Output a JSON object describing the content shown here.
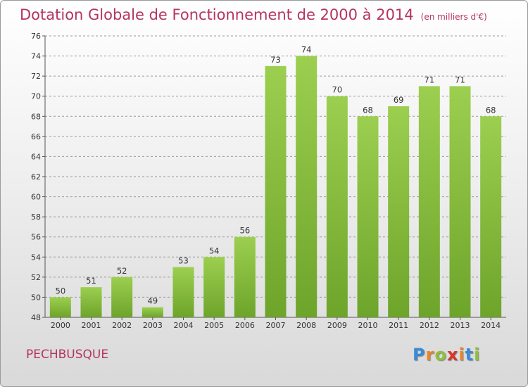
{
  "title": "Dotation Globale de Fonctionnement de 2000 à 2014",
  "subtitle": "(en milliers d'€)",
  "commune": "PECHBUSQUE",
  "logo": "Proxiti",
  "colors": {
    "title": "#b5345f",
    "bar_light": "#9ccf50",
    "bar_dark": "#6da42a",
    "grid": "#9a9a9a"
  },
  "chart_data": {
    "type": "bar",
    "categories": [
      "2000",
      "2001",
      "2002",
      "2003",
      "2004",
      "2005",
      "2006",
      "2007",
      "2008",
      "2009",
      "2010",
      "2011",
      "2012",
      "2013",
      "2014"
    ],
    "values": [
      50,
      51,
      52,
      49,
      53,
      54,
      56,
      73,
      74,
      70,
      68,
      69,
      71,
      71,
      68
    ],
    "ylim": [
      48,
      76
    ],
    "yticks": [
      48,
      50,
      52,
      54,
      56,
      58,
      60,
      62,
      64,
      66,
      68,
      70,
      72,
      74,
      76
    ],
    "grid": true,
    "legend": "none"
  }
}
